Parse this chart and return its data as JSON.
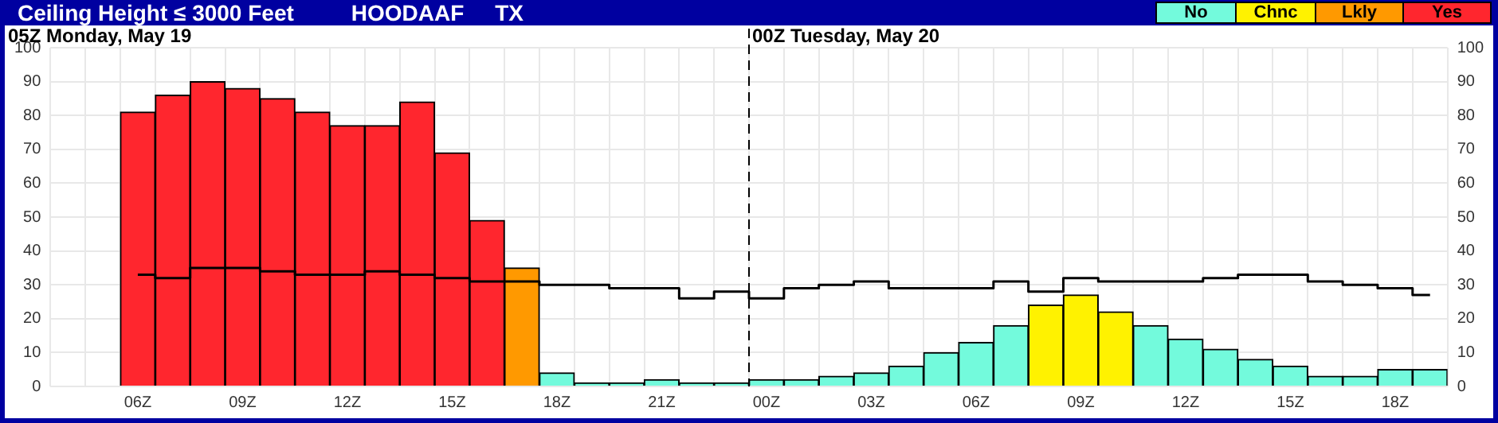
{
  "chart_data": {
    "type": "bar",
    "title": "Ceiling Height ≤ 3000 Feet",
    "subtitle": "HOODAAF     TX",
    "categories": [
      null,
      null,
      "06Z",
      null,
      null,
      "09Z",
      null,
      null,
      "12Z",
      null,
      null,
      "15Z",
      null,
      null,
      "18Z",
      null,
      null,
      "21Z",
      null,
      null,
      "00Z",
      null,
      null,
      "03Z",
      null,
      null,
      "06Z",
      null,
      null,
      "09Z",
      null,
      null,
      "12Z",
      null,
      null,
      "15Z",
      null,
      null,
      "18Z",
      null
    ],
    "stacked": true,
    "series": [
      {
        "name": "No",
        "color": "#73fadc",
        "values": [
          null,
          null,
          null,
          null,
          null,
          null,
          null,
          null,
          null,
          null,
          null,
          null,
          null,
          null,
          4,
          1,
          1,
          2,
          1,
          1,
          2,
          2,
          3,
          4,
          6,
          10,
          13,
          18,
          null,
          null,
          null,
          18,
          14,
          11,
          8,
          6,
          3,
          3,
          5,
          5
        ]
      },
      {
        "name": "Chnc",
        "color": "#fff200",
        "values": [
          null,
          null,
          null,
          null,
          null,
          null,
          null,
          null,
          null,
          null,
          null,
          null,
          null,
          null,
          null,
          null,
          null,
          null,
          null,
          null,
          null,
          null,
          null,
          null,
          null,
          null,
          null,
          null,
          24,
          27,
          22,
          null,
          null,
          null,
          null,
          null,
          null,
          null,
          null,
          null
        ]
      },
      {
        "name": "Lkly",
        "color": "#ff9900",
        "values": [
          null,
          null,
          null,
          null,
          null,
          null,
          null,
          null,
          null,
          null,
          null,
          null,
          null,
          35,
          null,
          null,
          null,
          null,
          null,
          null,
          null,
          null,
          null,
          null,
          null,
          null,
          null,
          null,
          null,
          null,
          null,
          null,
          null,
          null,
          null,
          null,
          null,
          null,
          null,
          null
        ]
      },
      {
        "name": "Yes",
        "color": "#ff262e",
        "values": [
          null,
          null,
          81,
          86,
          90,
          88,
          85,
          81,
          77,
          77,
          84,
          69,
          49,
          null,
          null,
          null,
          null,
          null,
          null,
          null,
          null,
          null,
          null,
          null,
          null,
          null,
          null,
          null,
          null,
          null,
          null,
          null,
          null,
          null,
          null,
          null,
          null,
          null,
          null,
          null
        ]
      },
      {
        "type": "step",
        "color": "#000000",
        "values": [
          null,
          null,
          33,
          32,
          35,
          35,
          34,
          33,
          33,
          34,
          33,
          32,
          31,
          31,
          30,
          30,
          29,
          29,
          26,
          28,
          26,
          29,
          30,
          31,
          29,
          29,
          29,
          31,
          28,
          32,
          31,
          31,
          31,
          32,
          33,
          33,
          31,
          30,
          29,
          27
        ]
      }
    ],
    "ylim": [
      0,
      100
    ],
    "yticks": [
      0,
      10,
      20,
      30,
      40,
      50,
      60,
      70,
      80,
      90,
      100
    ],
    "y2lim": [
      0,
      100
    ],
    "y2ticks": [
      0,
      10,
      20,
      30,
      40,
      50,
      60,
      70,
      80,
      90,
      100
    ],
    "grid": true,
    "legend": "top right",
    "annotations": [
      "05Z Monday, May 19"
    ],
    "ref_lines": [
      {
        "axis": "x",
        "value": "00Z",
        "label": "00Z Tuesday, May 20",
        "color": "#000000",
        "line_style": "dashed"
      }
    ]
  }
}
